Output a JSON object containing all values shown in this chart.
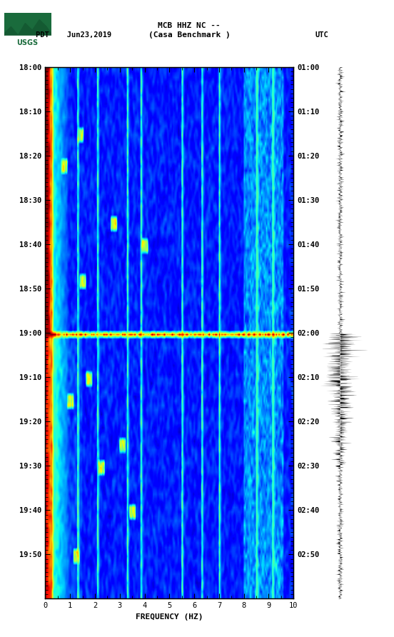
{
  "title_line1": "MCB HHZ NC --",
  "title_line2": "(Casa Benchmark )",
  "date_label": "PDT    Jun23,2019",
  "utc_label": "UTC",
  "xlabel": "FREQUENCY (HZ)",
  "freq_min": 0,
  "freq_max": 10,
  "time_labels_left": [
    "18:00",
    "18:10",
    "18:20",
    "18:30",
    "18:40",
    "18:50",
    "19:00",
    "19:10",
    "19:20",
    "19:30",
    "19:40",
    "19:50"
  ],
  "time_labels_right": [
    "01:00",
    "01:10",
    "01:20",
    "01:30",
    "01:40",
    "01:50",
    "02:00",
    "02:10",
    "02:20",
    "02:30",
    "02:40",
    "02:50"
  ],
  "n_time_steps": 120,
  "n_freq_steps": 200,
  "background_color": "#ffffff",
  "event_row": 60,
  "colormap": "jet"
}
